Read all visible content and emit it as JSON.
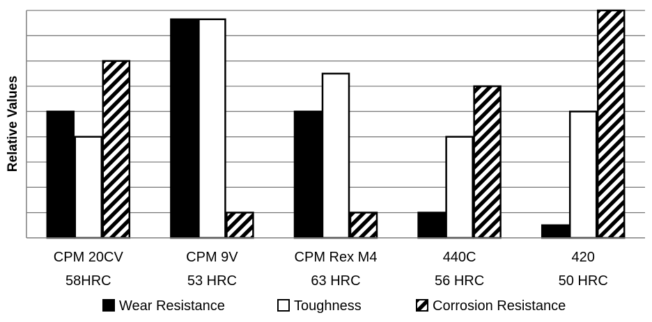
{
  "chart_data": {
    "type": "bar",
    "title": "",
    "xlabel": "",
    "ylabel": "Relative Values",
    "ylim": [
      0,
      9
    ],
    "y_ticks_labeled": false,
    "grid": true,
    "legend_position": "bottom",
    "categories": [
      [
        "CPM 20CV",
        "58HRC"
      ],
      [
        "CPM 9V",
        "53 HRC"
      ],
      [
        "CPM Rex M4",
        "63 HRC"
      ],
      [
        "440C",
        "56 HRC"
      ],
      [
        "420",
        "50 HRC"
      ]
    ],
    "series": [
      {
        "name": "Wear Resistance",
        "fill": "solid",
        "color": "#000000",
        "values": [
          5,
          8.65,
          5,
          1,
          0.5
        ]
      },
      {
        "name": "Toughness",
        "fill": "open",
        "color": "#ffffff",
        "values": [
          4,
          8.65,
          6.5,
          4,
          5
        ]
      },
      {
        "name": "Corrosion Resistance",
        "fill": "hatched",
        "color": "#000000",
        "values": [
          7,
          1,
          1,
          6,
          9
        ]
      }
    ]
  }
}
